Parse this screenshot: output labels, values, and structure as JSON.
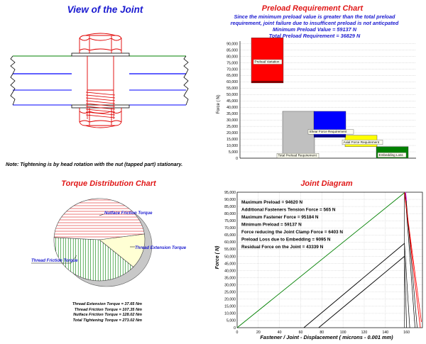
{
  "joint_view": {
    "title": "View of the Joint",
    "note": "Note: Tightening is by head rotation with the nut (tapped part) stationary."
  },
  "preload_chart": {
    "title": "Preload Requirement Chart",
    "subtitle_lines": [
      "Since the minimum preload value is greater than the total preload",
      "requirement, joint failure due to insufficent preload is not anticpated",
      "Minimum Preload Value = 59137 N",
      "Total Preload Requirement = 36829 N"
    ],
    "ylabel": "Force ( N)",
    "yticks": [
      "0",
      "5,000",
      "10,000",
      "15,000",
      "20,000",
      "25,000",
      "30,000",
      "35,000",
      "40,000",
      "45,000",
      "50,000",
      "55,000",
      "60,000",
      "65,000",
      "70,000",
      "75,000",
      "80,000",
      "85,000",
      "90,000"
    ],
    "labels": {
      "preload_variation": "Preload Variation",
      "total_preload": "Total Preload Requirement",
      "shear_force": "Shear Force Requirement",
      "axial_force": "Axial Force Requirement",
      "embedding": "Embedding Loss"
    },
    "colors": {
      "preload_variation": "#ff0000",
      "total_preload": "#c0c0c0",
      "shear_force": "#0000ff",
      "axial_force": "#ffff00",
      "embedding": "#008000"
    }
  },
  "torque_chart": {
    "title": "Torque Distribution Chart",
    "labels": {
      "nutface": "Nutface Friction Torque",
      "thread_ext": "Thread Extension Torque",
      "thread_fric": "Thread Friction Torque"
    },
    "values": [
      "Thread Extension Torque = 37.65 Nm",
      "Thread Friction Torque = 107.35 Nm",
      "Nutface Friction Torque = 128.02 Nm",
      "Total Tightening Torque = 273.02 Nm"
    ]
  },
  "joint_diagram": {
    "title": "Joint Diagram",
    "xlabel": "Fastener / Joint - Displacement ( microns - 0.001 mm)",
    "ylabel": "Force ( N)",
    "info_lines": [
      "Maximum Preload = 94620 N",
      "Additional Fasteners Tension Force = 565 N",
      "Maximum Fastener Force = 95184 N",
      "Minimum Preload = 59137 N",
      "Force reducing the Joint Clamp Force = 6403 N",
      "Preload Loss due to Embedding = 9095 N",
      "Residual Force on the Joint = 43339 N"
    ],
    "xticks": [
      "0",
      "20",
      "40",
      "60",
      "80",
      "100",
      "120",
      "140",
      "160"
    ],
    "yticks": [
      "0",
      "5,000",
      "10,000",
      "15,000",
      "20,000",
      "25,000",
      "30,000",
      "35,000",
      "40,000",
      "45,000",
      "50,000",
      "55,000",
      "60,000",
      "65,000",
      "70,000",
      "75,000",
      "80,000",
      "85,000",
      "90,000",
      "95,000"
    ]
  },
  "chart_data": [
    {
      "type": "bar",
      "title": "Preload Requirement Chart",
      "ylabel": "Force ( N)",
      "ylim": [
        0,
        92000
      ],
      "series": [
        {
          "name": "Preload Variation",
          "base": 59137,
          "top": 94620
        },
        {
          "name": "Total Preload Requirement",
          "base": 0,
          "top": 36829
        },
        {
          "name": "Shear Force Requirement",
          "base": 18000,
          "top": 36829
        },
        {
          "name": "Axial Force Requirement",
          "base": 9095,
          "top": 18000
        },
        {
          "name": "Embedding Loss",
          "base": 0,
          "top": 9095
        }
      ]
    },
    {
      "type": "pie",
      "title": "Torque Distribution Chart",
      "categories": [
        "Thread Extension Torque",
        "Thread Friction Torque",
        "Nutface Friction Torque"
      ],
      "values": [
        37.65,
        107.35,
        128.02
      ]
    },
    {
      "type": "line",
      "title": "Joint Diagram",
      "xlabel": "Fastener / Joint - Displacement ( microns - 0.001 mm)",
      "ylabel": "Force ( N)",
      "xlim": [
        0,
        175
      ],
      "ylim": [
        0,
        95000
      ],
      "series": [
        {
          "name": "bolt",
          "color": "#008000",
          "x": [
            0,
            158
          ],
          "y": [
            0,
            94620
          ]
        },
        {
          "name": "joint max",
          "color": "#ff0000",
          "x": [
            158,
            173
          ],
          "y": [
            94620,
            0
          ]
        },
        {
          "name": "bolt min",
          "color": "#000000",
          "x": [
            63,
            158
          ],
          "y": [
            0,
            59137
          ]
        },
        {
          "name": "bolt residual",
          "color": "#000000",
          "x": [
            77,
            158
          ],
          "y": [
            0,
            50042
          ]
        }
      ]
    }
  ]
}
